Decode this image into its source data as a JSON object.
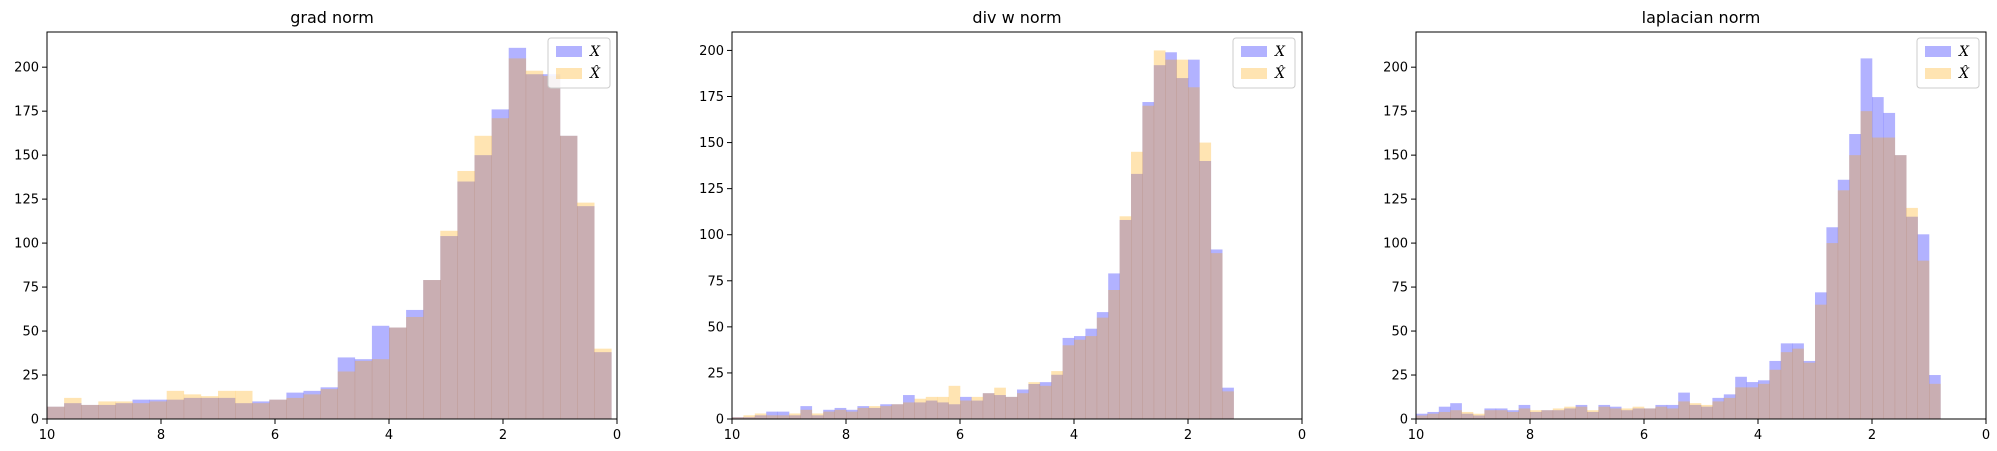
{
  "chart_data": [
    {
      "type": "histogram",
      "title": "grad norm",
      "xlim": [
        10,
        0
      ],
      "ylim": [
        0,
        220
      ],
      "xticks": [
        10,
        8,
        6,
        4,
        2,
        0
      ],
      "yticks": [
        0,
        25,
        50,
        75,
        100,
        125,
        150,
        175,
        200
      ],
      "colors": {
        "X": "#0000ff",
        "Xhat": "#ffa500"
      },
      "legend": {
        "position": "top-right",
        "labels": [
          "X",
          "X̂"
        ]
      },
      "series": [
        {
          "name": "X",
          "bin_start": 10,
          "bin_width": 0.3,
          "values": [
            7,
            9,
            8,
            8,
            9,
            11,
            11,
            11,
            12,
            12,
            12,
            9,
            10,
            11,
            15,
            16,
            18,
            35,
            34,
            53,
            52,
            62,
            79,
            104,
            135,
            150,
            176,
            211,
            196,
            196,
            161,
            121,
            38
          ]
        },
        {
          "name": "X̂",
          "bin_start": 10,
          "bin_width": 0.3,
          "values": [
            7,
            12,
            8,
            10,
            10,
            9,
            10,
            16,
            14,
            13,
            16,
            16,
            9,
            11,
            12,
            14,
            17,
            27,
            33,
            34,
            52,
            58,
            79,
            107,
            141,
            161,
            171,
            205,
            198,
            195,
            161,
            123,
            40
          ]
        }
      ]
    },
    {
      "type": "histogram",
      "title": "div w norm",
      "xlim": [
        10,
        0
      ],
      "ylim": [
        0,
        210
      ],
      "xticks": [
        10,
        8,
        6,
        4,
        2,
        0
      ],
      "yticks": [
        0,
        25,
        50,
        75,
        100,
        125,
        150,
        175,
        200
      ],
      "colors": {
        "X": "#0000ff",
        "Xhat": "#ffa500"
      },
      "legend": {
        "position": "top-right",
        "labels": [
          "X",
          "X̂"
        ]
      },
      "series": [
        {
          "name": "X",
          "bin_start": 10,
          "bin_width": 0.2,
          "values": [
            1,
            1,
            2,
            4,
            4,
            2,
            7,
            2,
            5,
            6,
            5,
            7,
            6,
            8,
            8,
            13,
            9,
            10,
            9,
            8,
            12,
            10,
            14,
            13,
            12,
            16,
            19,
            20,
            24,
            44,
            45,
            49,
            58,
            79,
            108,
            133,
            172,
            192,
            199,
            185,
            195,
            140,
            92,
            17
          ]
        },
        {
          "name": "X̂",
          "bin_start": 10,
          "bin_width": 0.2,
          "values": [
            1,
            2,
            3,
            2,
            2,
            3,
            5,
            3,
            4,
            5,
            4,
            6,
            7,
            7,
            8,
            9,
            11,
            12,
            12,
            18,
            10,
            12,
            14,
            17,
            12,
            14,
            20,
            18,
            26,
            40,
            43,
            45,
            55,
            70,
            110,
            145,
            170,
            200,
            195,
            195,
            180,
            150,
            90,
            15
          ]
        }
      ]
    },
    {
      "type": "histogram",
      "title": "laplacian norm",
      "xlim": [
        10,
        0
      ],
      "ylim": [
        0,
        220
      ],
      "xticks": [
        10,
        8,
        6,
        4,
        2,
        0
      ],
      "yticks": [
        0,
        25,
        50,
        75,
        100,
        125,
        150,
        175,
        200
      ],
      "colors": {
        "X": "#0000ff",
        "Xhat": "#ffa500"
      },
      "legend": {
        "position": "top-right",
        "labels": [
          "X",
          "X̂"
        ]
      },
      "series": [
        {
          "name": "X",
          "bin_start": 10,
          "bin_width": 0.2,
          "values": [
            3,
            4,
            7,
            9,
            3,
            2,
            6,
            6,
            5,
            8,
            4,
            5,
            5,
            6,
            8,
            4,
            8,
            7,
            5,
            6,
            6,
            8,
            8,
            15,
            8,
            7,
            12,
            14,
            24,
            21,
            22,
            33,
            43,
            43,
            33,
            72,
            109,
            136,
            162,
            205,
            183,
            174,
            150,
            115,
            105,
            25
          ]
        },
        {
          "name": "X̂",
          "bin_start": 10,
          "bin_width": 0.2,
          "values": [
            2,
            3,
            4,
            5,
            4,
            3,
            5,
            5,
            4,
            6,
            5,
            5,
            6,
            7,
            7,
            5,
            7,
            6,
            6,
            7,
            6,
            7,
            6,
            10,
            9,
            8,
            10,
            12,
            18,
            18,
            20,
            28,
            38,
            40,
            32,
            65,
            100,
            130,
            150,
            175,
            160,
            160,
            150,
            120,
            90,
            20
          ]
        }
      ]
    }
  ]
}
